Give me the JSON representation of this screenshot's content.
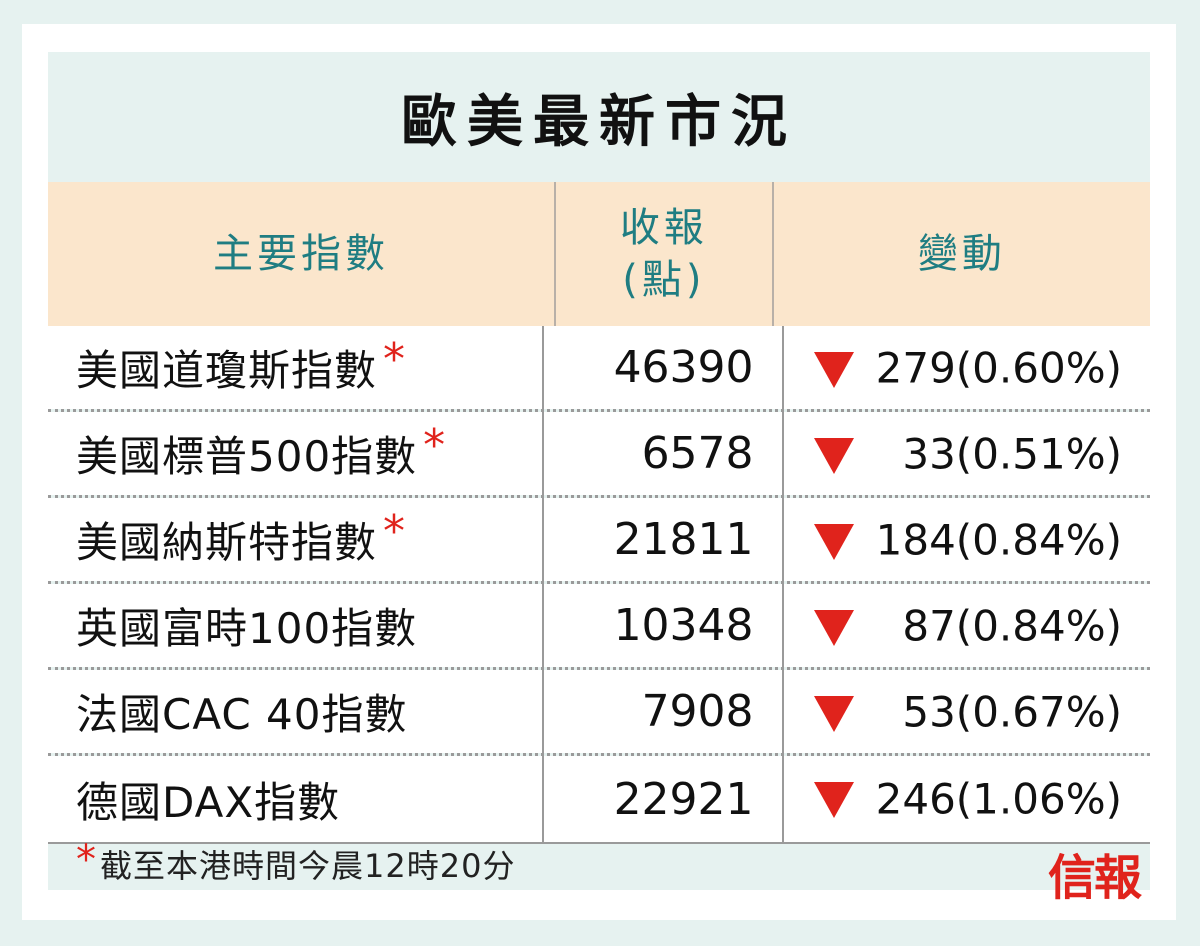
{
  "title": "歐美最新市況",
  "header": {
    "col_index": "主要指數",
    "col_close_line1": "收報",
    "col_close_line2": "(點)",
    "col_change": "變動"
  },
  "rows": [
    {
      "name": "美國道瓊斯指數",
      "star": "*",
      "close": "46390",
      "direction": "down",
      "change": "279(0.60%)"
    },
    {
      "name": "美國標普500指數",
      "star": "*",
      "close": "6578",
      "direction": "down",
      "change": "33(0.51%)"
    },
    {
      "name": "美國納斯特指數",
      "star": "*",
      "close": "21811",
      "direction": "down",
      "change": "184(0.84%)"
    },
    {
      "name": "英國富時100指數",
      "star": "",
      "close": "10348",
      "direction": "down",
      "change": "87(0.84%)"
    },
    {
      "name": "法國CAC 40指數",
      "star": "",
      "close": "7908",
      "direction": "down",
      "change": "53(0.67%)"
    },
    {
      "name": "德國DAX指數",
      "star": "",
      "close": "22921",
      "direction": "down",
      "change": "246(1.06%)"
    }
  ],
  "footer": {
    "star": "*",
    "note": "截至本港時間今晨12時20分",
    "logo": "信報"
  },
  "colors": {
    "page_bg": "#e6f2f0",
    "header_bg": "#fbe6cc",
    "header_text": "#1f7d82",
    "accent_red": "#e0231c"
  }
}
